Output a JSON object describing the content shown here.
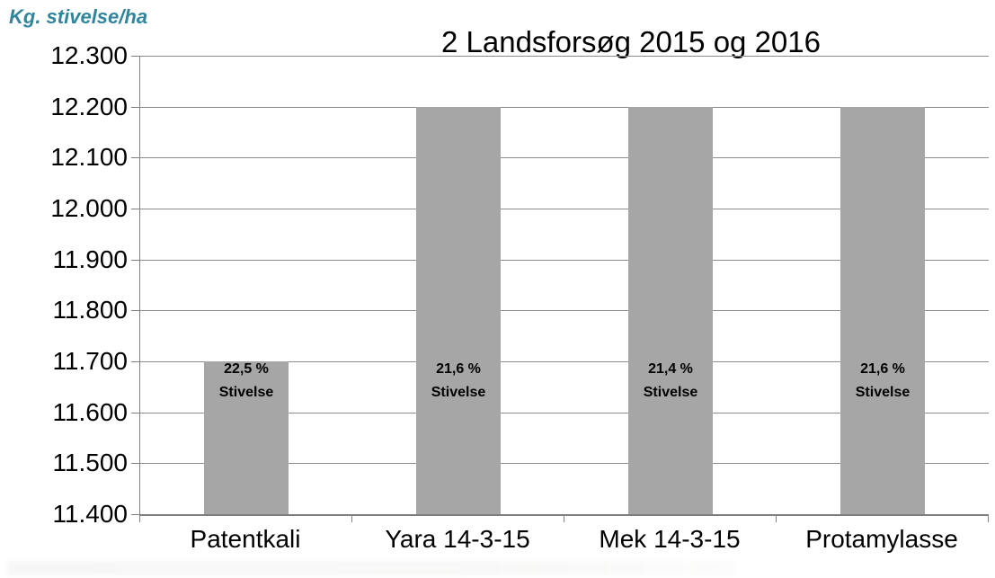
{
  "colors": {
    "bar_fill": "#A6A6A6",
    "gridline": "#8C8C8C",
    "axis_line": "#7F7F7F",
    "y_axis_title_text": "#31859C",
    "text": "#000000",
    "background": "#FFFFFF"
  },
  "chart_data": {
    "type": "bar",
    "title": "2 Landsforsøg 2015 og 2016",
    "y_axis_label": "Kg. stivelse/ha",
    "x_axis_label": "",
    "categories": [
      "Patentkali",
      "Yara 14-3-15",
      "Mek 14-3-15",
      "Protamylasse"
    ],
    "values": [
      11700,
      12200,
      12200,
      12200
    ],
    "bar_annotations": [
      {
        "line1": "22,5 %",
        "line2": "Stivelse"
      },
      {
        "line1": "21,6 %",
        "line2": "Stivelse"
      },
      {
        "line1": "21,4 %",
        "line2": "Stivelse"
      },
      {
        "line1": "21,6 %",
        "line2": "Stivelse"
      }
    ],
    "ylim": [
      11400,
      12300
    ],
    "y_tick_step": 100,
    "y_tick_labels": [
      "12.300",
      "12.200",
      "12.100",
      "12.000",
      "11.900",
      "11.800",
      "11.700",
      "11.600",
      "11.500",
      "11.400"
    ],
    "grid": true,
    "legend": "none"
  }
}
